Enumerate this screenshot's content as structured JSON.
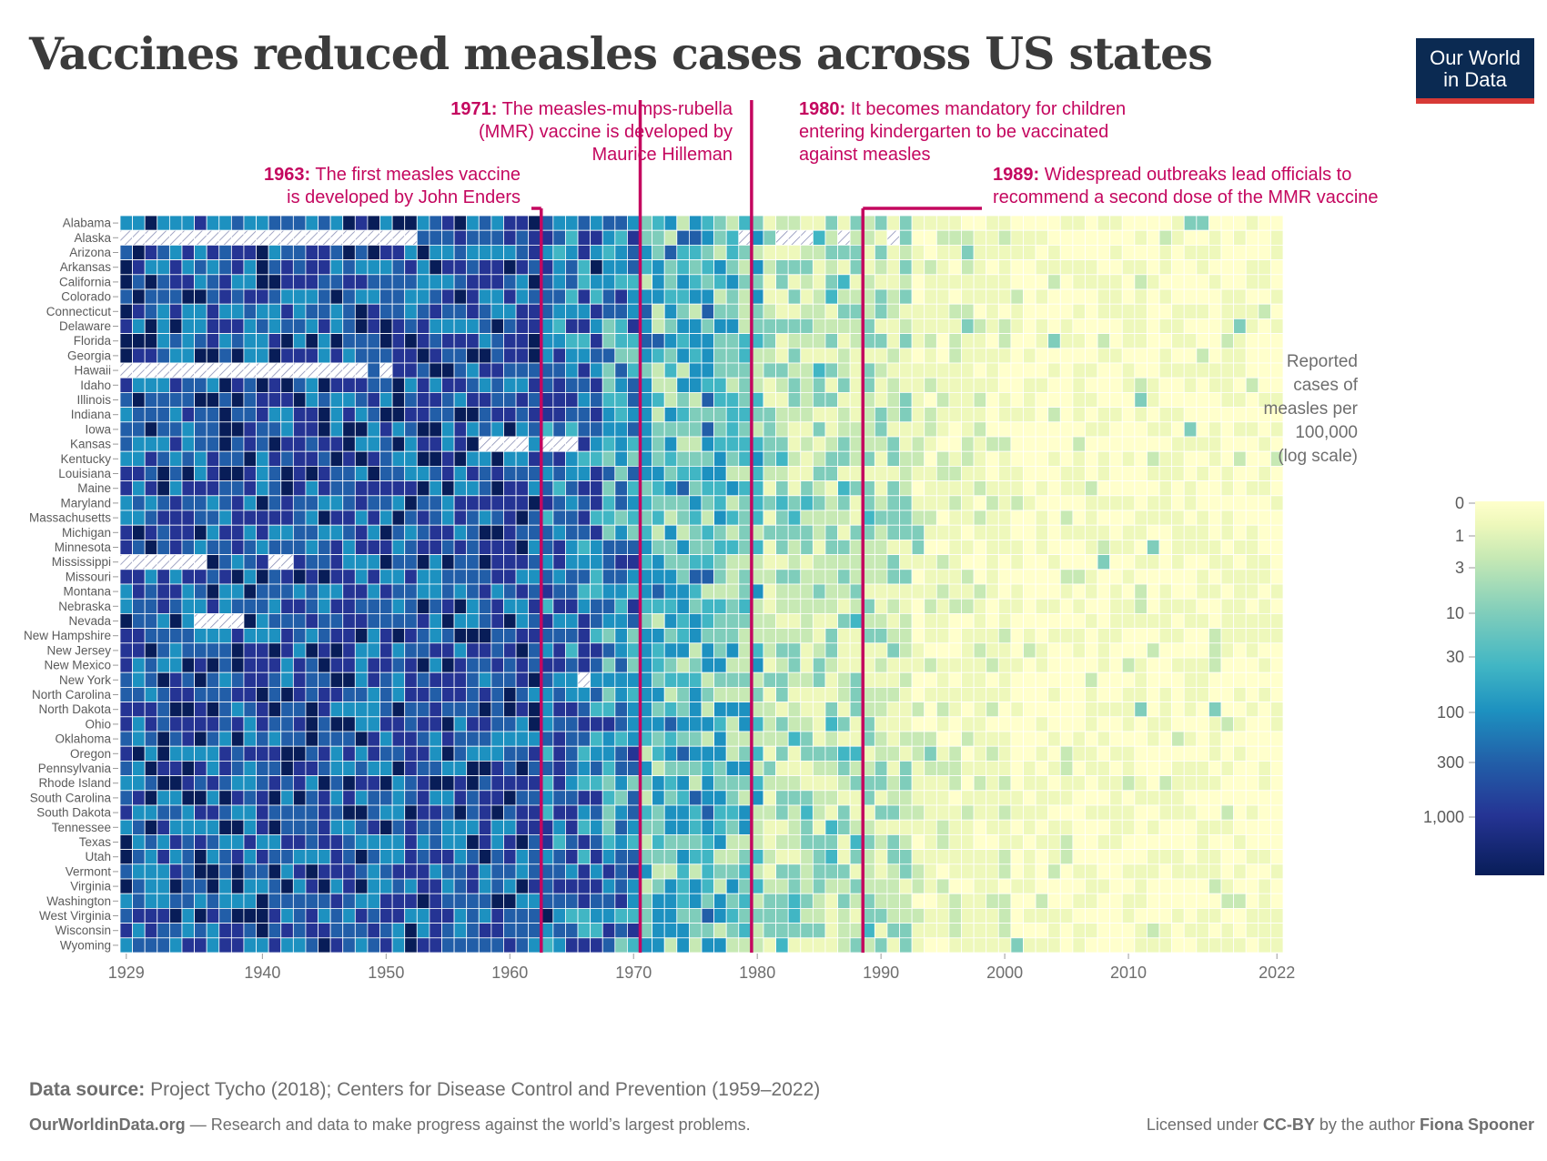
{
  "title": "Vaccines reduced measles cases across US states",
  "logo": {
    "line1": "Our World",
    "line2": "in Data"
  },
  "footer": {
    "source_label": "Data source:",
    "source_text": "Project Tycho (2018); Centers for Disease Control and Prevention (1959–2022)",
    "site": "OurWorldinData.org",
    "tagline": "— Research and data to make progress against the world’s largest problems.",
    "license_pre": "Licensed under ",
    "license": "CC-BY",
    "license_mid": " by the author ",
    "author": "Fiona Spooner"
  },
  "colors": {
    "scale": [
      "#ffffcc",
      "#eef8bb",
      "#c7e9b4",
      "#7fcdbb",
      "#41b6c4",
      "#1d91c0",
      "#225ea8",
      "#253494",
      "#081d58"
    ],
    "annotation": "#c4075f",
    "missing_hatch": "#8a8fb5"
  },
  "chart_data": {
    "type": "heatmap",
    "x_start": 1929,
    "x_end": 2022,
    "x_ticks": [
      1929,
      1940,
      1950,
      1960,
      1970,
      1980,
      1990,
      2000,
      2010,
      2022
    ],
    "x_tick_labels": [
      "1929",
      "1940",
      "1950",
      "1960",
      "1970",
      "1980",
      "1990",
      "2000",
      "2010",
      "2022"
    ],
    "rows": [
      "Alabama",
      "Alaska",
      "Arizona",
      "Arkansas",
      "California",
      "Colorado",
      "Connecticut",
      "Delaware",
      "Florida",
      "Georgia",
      "Hawaii",
      "Idaho",
      "Illinois",
      "Indiana",
      "Iowa",
      "Kansas",
      "Kentucky",
      "Louisiana",
      "Maine",
      "Maryland",
      "Massachusetts",
      "Michigan",
      "Minnesota",
      "Mississippi",
      "Missouri",
      "Montana",
      "Nebraska",
      "Nevada",
      "New Hampshire",
      "New Jersey",
      "New Mexico",
      "New York",
      "North Carolina",
      "North Dakota",
      "Ohio",
      "Oklahoma",
      "Oregon",
      "Pennsylvania",
      "Rhode Island",
      "South Carolina",
      "South Dakota",
      "Tennessee",
      "Texas",
      "Utah",
      "Vermont",
      "Virginia",
      "Washington",
      "West Virginia",
      "Wisconsin",
      "Wyoming"
    ],
    "value_label": "Reported cases of measles per 100,000 (log scale)",
    "legend": {
      "title_lines": [
        "Reported",
        "cases of",
        "measles per",
        "100,000",
        "(log scale)"
      ],
      "ticks": [
        0,
        1,
        3,
        10,
        30,
        100,
        300,
        1000
      ],
      "tick_labels": [
        "0",
        "1",
        "3",
        "10",
        "30",
        "100",
        "300",
        "1,000"
      ],
      "range": [
        0,
        3000
      ]
    },
    "missing": [
      {
        "row": "Alaska",
        "from": 1929,
        "to": 1952
      },
      {
        "row": "Alaska",
        "from": 1979,
        "to": 1979
      },
      {
        "row": "Alaska",
        "from": 1982,
        "to": 1984
      },
      {
        "row": "Alaska",
        "from": 1987,
        "to": 1987
      },
      {
        "row": "Alaska",
        "from": 1991,
        "to": 1991
      },
      {
        "row": "Hawaii",
        "from": 1929,
        "to": 1948
      },
      {
        "row": "Hawaii",
        "from": 1950,
        "to": 1950
      },
      {
        "row": "Kansas",
        "from": 1958,
        "to": 1961
      },
      {
        "row": "Kansas",
        "from": 1963,
        "to": 1965
      },
      {
        "row": "Mississippi",
        "from": 1929,
        "to": 1935
      },
      {
        "row": "Mississippi",
        "from": 1941,
        "to": 1942
      },
      {
        "row": "Nevada",
        "from": 1935,
        "to": 1938
      },
      {
        "row": "New York",
        "from": 1966,
        "to": 1966
      }
    ],
    "period_levels": [
      {
        "from": 1929,
        "to": 1962,
        "level": 100
      },
      {
        "from": 1963,
        "to": 1967,
        "level": 60
      },
      {
        "from": 1968,
        "to": 1970,
        "level": 25
      },
      {
        "from": 1971,
        "to": 1977,
        "level": 8
      },
      {
        "from": 1978,
        "to": 1980,
        "level": 4
      },
      {
        "from": 1981,
        "to": 1989,
        "level": 1.2
      },
      {
        "from": 1990,
        "to": 1992,
        "level": 0.8
      },
      {
        "from": 1993,
        "to": 2000,
        "level": 0.15
      },
      {
        "from": 2001,
        "to": 2022,
        "level": 0.04
      }
    ],
    "annotations": [
      {
        "year": 1963,
        "bold": "1963:",
        "lines": [
          " The first measles vaccine",
          "is developed by John Enders"
        ]
      },
      {
        "year": 1971,
        "bold": "1971:",
        "lines": [
          " The measles-mumps-rubella",
          "(MMR) vaccine is developed by",
          "Maurice Hilleman"
        ]
      },
      {
        "year": 1980,
        "bold": "1980:",
        "lines": [
          " It becomes mandatory for children",
          "entering kindergarten to be vaccinated",
          "against measles"
        ]
      },
      {
        "year": 1989,
        "bold": "1989:",
        "lines": [
          " Widespread outbreaks lead officials to",
          "recommend a second dose of the MMR vaccine"
        ]
      }
    ]
  }
}
